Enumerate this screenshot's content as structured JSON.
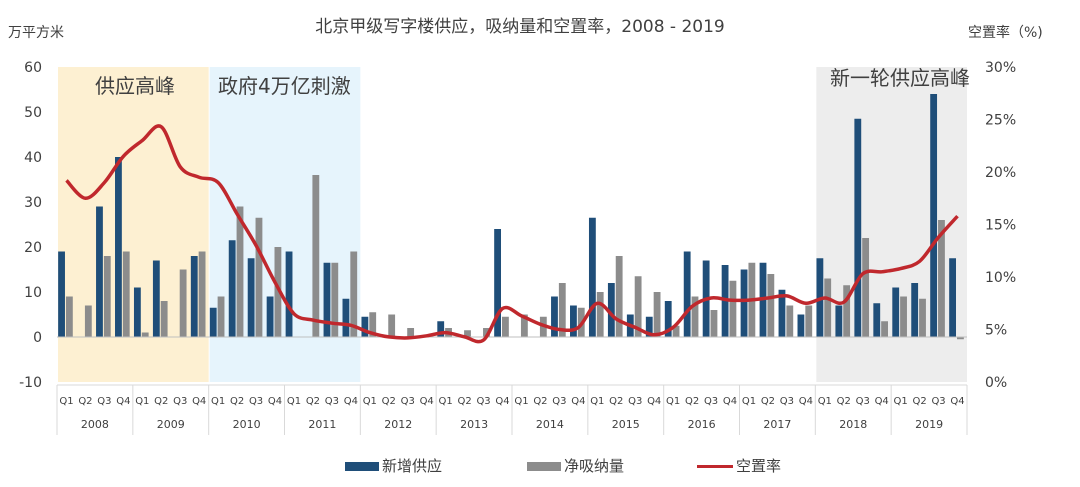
{
  "chart_data": {
    "type": "bar",
    "title": "北京甲级写字楼供应，吸纳量和空置率，2008 - 2019",
    "ylabel_left": "万平方米",
    "ylabel_right": "空置率（%)",
    "ylim_left": [
      -10,
      60
    ],
    "ylim_right": [
      0,
      30
    ],
    "left_ticks": [
      "-10",
      "0",
      "10",
      "20",
      "30",
      "40",
      "50",
      "60"
    ],
    "right_ticks": [
      "0%",
      "5%",
      "10%",
      "15%",
      "20%",
      "25%",
      "30%"
    ],
    "quarters": [
      "Q1",
      "Q2",
      "Q3",
      "Q4",
      "Q1",
      "Q2",
      "Q3",
      "Q4",
      "Q1",
      "Q2",
      "Q3",
      "Q4",
      "Q1",
      "Q2",
      "Q3",
      "Q4",
      "Q1",
      "Q2",
      "Q3",
      "Q4",
      "Q1",
      "Q2",
      "Q3",
      "Q4",
      "Q1",
      "Q2",
      "Q3",
      "Q4",
      "Q1",
      "Q2",
      "Q3",
      "Q4",
      "Q1",
      "Q2",
      "Q3",
      "Q4",
      "Q1",
      "Q2",
      "Q3",
      "Q4",
      "Q1",
      "Q2",
      "Q3",
      "Q4",
      "Q1",
      "Q2",
      "Q3",
      "Q4"
    ],
    "years": [
      "2008",
      "2009",
      "2010",
      "2011",
      "2012",
      "2013",
      "2014",
      "2015",
      "2016",
      "2017",
      "2018",
      "2019"
    ],
    "series": [
      {
        "name": "新增供应",
        "color": "#1f4e79",
        "values": [
          19,
          0,
          29,
          40,
          11,
          17,
          0,
          18,
          6.5,
          21.5,
          17.5,
          9,
          19,
          0,
          16.5,
          8.5,
          4.5,
          0,
          0,
          0,
          3.5,
          0,
          0,
          24,
          0,
          0,
          9,
          7,
          26.5,
          12,
          5,
          4.5,
          8,
          19,
          17,
          16,
          15,
          16.5,
          10.5,
          5,
          17.5,
          7,
          48.5,
          7.5,
          11,
          12,
          54,
          17.5
        ]
      },
      {
        "name": "净吸纳量",
        "color": "#8c8c8c",
        "values": [
          9,
          7,
          18,
          19,
          1,
          8,
          15,
          19,
          9,
          29,
          26.5,
          20,
          0,
          36,
          16.5,
          19,
          5.5,
          5,
          2,
          0,
          2,
          1.5,
          2,
          4.5,
          5,
          4.5,
          12,
          6.5,
          10,
          18,
          13.5,
          10,
          2.5,
          9,
          6,
          12.5,
          16.5,
          14,
          7,
          7,
          13,
          11.5,
          22,
          3.5,
          9,
          8.5,
          26,
          -0.5
        ]
      },
      {
        "name": "空置率",
        "color": "#c0282d",
        "values": [
          19.2,
          17.5,
          19.0,
          21.5,
          23.0,
          24.3,
          20.5,
          19.5,
          19.0,
          16.0,
          13.0,
          9.5,
          6.5,
          5.9,
          5.6,
          5.4,
          4.7,
          4.3,
          4.2,
          4.4,
          4.7,
          4.3,
          4.0,
          7.0,
          6.3,
          5.5,
          5.0,
          5.2,
          7.5,
          6.0,
          5.2,
          4.5,
          5.2,
          7.2,
          8.0,
          7.8,
          7.8,
          8.0,
          8.2,
          7.5,
          8.0,
          7.6,
          10.3,
          10.5,
          10.8,
          11.5,
          13.8,
          15.8
        ]
      }
    ],
    "bands": [
      {
        "label": "供应高峰",
        "color": "#fdf0d2"
      },
      {
        "label": "政府4万亿刺激",
        "color": "#e6f4fc"
      },
      {
        "label": "新一轮供应高峰",
        "color": "#ededed"
      }
    ],
    "grid": false,
    "legend_position": "bottom"
  }
}
